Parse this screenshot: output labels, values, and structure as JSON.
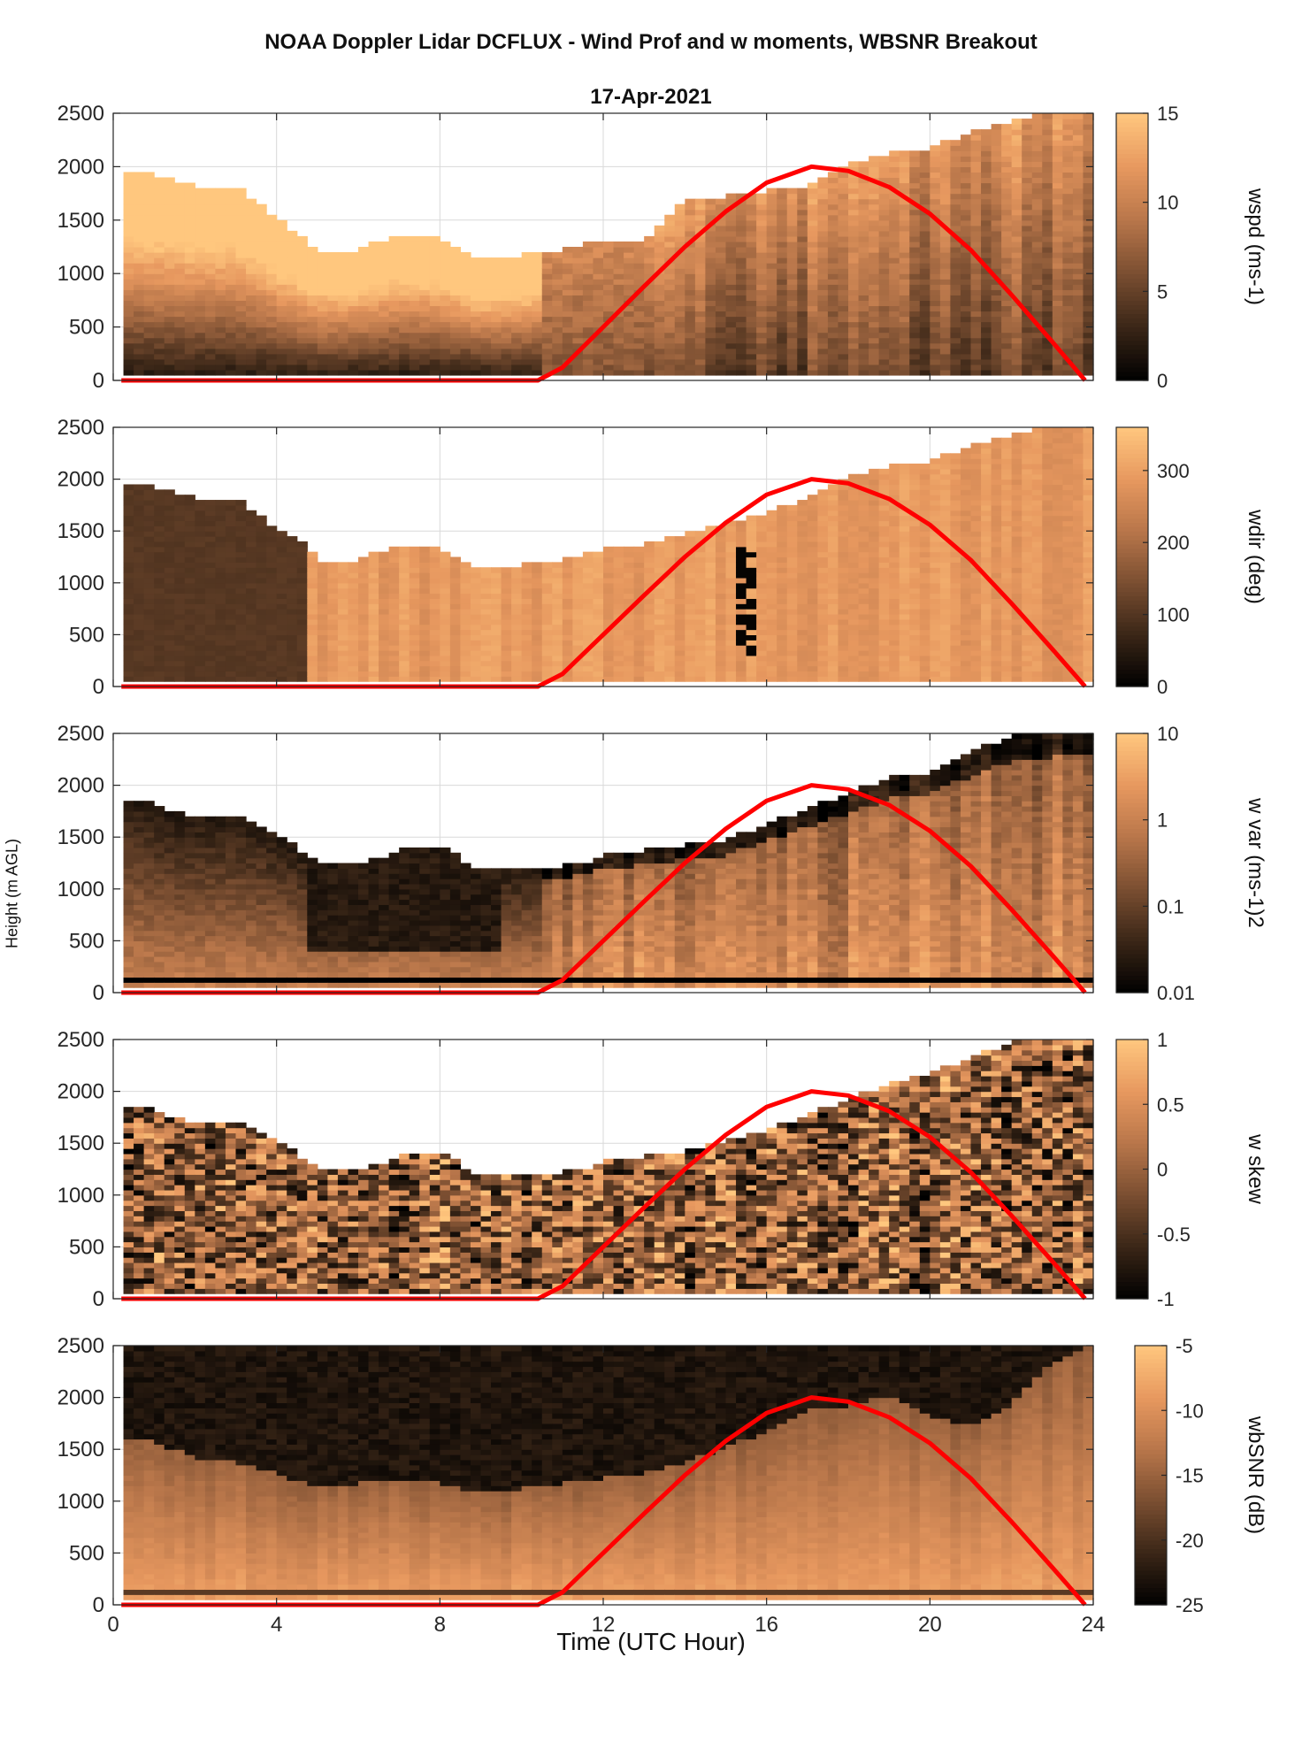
{
  "figure": {
    "title": "NOAA Doppler Lidar DCFLUX - Wind Prof and w moments, WBSNR Breakout",
    "subtitle": "17-Apr-2021",
    "xlabel": "Time (UTC Hour)",
    "ylabel": "Height (m AGL)"
  },
  "colors": {
    "colormap": [
      "#000000",
      "#3a2617",
      "#7a4e31",
      "#b8764a",
      "#e7985f",
      "#ffc77e"
    ],
    "overlay_line": "#ff0000",
    "grid": "#d9d9d9"
  },
  "chart_data": [
    {
      "type": "heatmap",
      "name": "wspd",
      "colorbar_label": "wspd (ms-1)",
      "x_range": [
        0,
        24
      ],
      "y_range": [
        0,
        2500
      ],
      "xticks": [
        0,
        4,
        8,
        12,
        16,
        20,
        24
      ],
      "yticks": [
        0,
        500,
        1000,
        1500,
        2000,
        2500
      ],
      "color_range": [
        0,
        15
      ],
      "color_ticks": [
        0,
        5,
        10,
        15
      ],
      "color_tick_labels": [
        "0",
        "5",
        "10",
        "15"
      ],
      "grid": true,
      "profile_top_m": [
        [
          0.25,
          1950
        ],
        [
          1,
          1900
        ],
        [
          2,
          1800
        ],
        [
          3,
          1800
        ],
        [
          4,
          1500
        ],
        [
          5,
          1200
        ],
        [
          6,
          1200
        ],
        [
          7,
          1350
        ],
        [
          8,
          1300
        ],
        [
          9,
          1100
        ],
        [
          10,
          1150
        ],
        [
          11,
          1200
        ],
        [
          11.5,
          1250
        ],
        [
          12,
          1300
        ],
        [
          13,
          1300
        ],
        [
          14,
          1650
        ],
        [
          15,
          1700
        ],
        [
          16,
          1750
        ],
        [
          17,
          1800
        ],
        [
          18,
          2000
        ],
        [
          19,
          2100
        ],
        [
          20,
          2150
        ],
        [
          21,
          2300
        ],
        [
          22,
          2400
        ],
        [
          23,
          2500
        ],
        [
          23.8,
          2500
        ]
      ]
    },
    {
      "type": "heatmap",
      "name": "wdir",
      "colorbar_label": "wdir (deg)",
      "x_range": [
        0,
        24
      ],
      "y_range": [
        0,
        2500
      ],
      "xticks": [
        0,
        4,
        8,
        12,
        16,
        20,
        24
      ],
      "yticks": [
        0,
        500,
        1000,
        1500,
        2000,
        2500
      ],
      "color_range": [
        0,
        360
      ],
      "color_ticks": [
        0,
        100,
        200,
        300
      ],
      "color_tick_labels": [
        "0",
        "100",
        "200",
        "300"
      ],
      "grid": true,
      "profile_top_m": [
        [
          0.25,
          1950
        ],
        [
          1,
          1900
        ],
        [
          2,
          1800
        ],
        [
          3,
          1800
        ],
        [
          4,
          1500
        ],
        [
          4.7,
          1350
        ],
        [
          5,
          1200
        ],
        [
          6,
          1200
        ],
        [
          7,
          1350
        ],
        [
          8,
          1300
        ],
        [
          9,
          1100
        ],
        [
          10,
          1150
        ],
        [
          11,
          1200
        ],
        [
          12,
          1300
        ],
        [
          13,
          1350
        ],
        [
          14,
          1450
        ],
        [
          15,
          1550
        ],
        [
          16,
          1650
        ],
        [
          17,
          1800
        ],
        [
          18,
          2000
        ],
        [
          19,
          2100
        ],
        [
          20,
          2150
        ],
        [
          21,
          2300
        ],
        [
          22,
          2400
        ],
        [
          23,
          2500
        ],
        [
          23.8,
          2500
        ]
      ]
    },
    {
      "type": "heatmap",
      "name": "w var",
      "colorbar_label": "w var (ms-1)2",
      "x_range": [
        0,
        24
      ],
      "y_range": [
        0,
        2500
      ],
      "xticks": [
        0,
        4,
        8,
        12,
        16,
        20,
        24
      ],
      "yticks": [
        0,
        500,
        1000,
        1500,
        2000,
        2500
      ],
      "color_scale": "log",
      "color_range": [
        0.01,
        10
      ],
      "color_ticks": [
        0.01,
        0.1,
        1,
        10
      ],
      "color_tick_labels": [
        "0.01",
        "0.1",
        "1",
        "10"
      ],
      "grid": true,
      "profile_top_m": [
        [
          0.25,
          1850
        ],
        [
          1,
          1800
        ],
        [
          2,
          1650
        ],
        [
          3,
          1700
        ],
        [
          4,
          1500
        ],
        [
          5,
          1250
        ],
        [
          6,
          1200
        ],
        [
          7,
          1350
        ],
        [
          8,
          1400
        ],
        [
          9,
          1150
        ],
        [
          10,
          1200
        ],
        [
          11,
          1200
        ],
        [
          11.7,
          1250
        ],
        [
          12,
          1300
        ],
        [
          13,
          1350
        ],
        [
          14,
          1400
        ],
        [
          15,
          1450
        ],
        [
          16,
          1600
        ],
        [
          17,
          1750
        ],
        [
          18,
          1900
        ],
        [
          19,
          2050
        ],
        [
          20,
          2100
        ],
        [
          21,
          2300
        ],
        [
          22,
          2450
        ],
        [
          23,
          2500
        ],
        [
          23.8,
          2500
        ]
      ]
    },
    {
      "type": "heatmap",
      "name": "w skew",
      "colorbar_label": "w skew",
      "x_range": [
        0,
        24
      ],
      "y_range": [
        0,
        2500
      ],
      "xticks": [
        0,
        4,
        8,
        12,
        16,
        20,
        24
      ],
      "yticks": [
        0,
        500,
        1000,
        1500,
        2000,
        2500
      ],
      "color_range": [
        -1,
        1
      ],
      "color_ticks": [
        -1,
        -0.5,
        0,
        0.5,
        1
      ],
      "color_tick_labels": [
        "-1",
        "-0.5",
        "0",
        "0.5",
        "1"
      ],
      "grid": true,
      "profile_top_m": [
        [
          0.25,
          1850
        ],
        [
          1,
          1800
        ],
        [
          2,
          1650
        ],
        [
          3,
          1700
        ],
        [
          4,
          1500
        ],
        [
          5,
          1250
        ],
        [
          6,
          1200
        ],
        [
          7,
          1350
        ],
        [
          8,
          1400
        ],
        [
          9,
          1150
        ],
        [
          10,
          1200
        ],
        [
          11,
          1200
        ],
        [
          11.7,
          1250
        ],
        [
          12,
          1300
        ],
        [
          13,
          1350
        ],
        [
          14,
          1400
        ],
        [
          15,
          1500
        ],
        [
          16,
          1600
        ],
        [
          17,
          1750
        ],
        [
          18,
          1900
        ],
        [
          19,
          2050
        ],
        [
          20,
          2150
        ],
        [
          21,
          2300
        ],
        [
          22,
          2450
        ],
        [
          23,
          2500
        ],
        [
          23.8,
          2500
        ]
      ]
    },
    {
      "type": "heatmap",
      "name": "wbSNR",
      "colorbar_label": "wbSNR (dB)",
      "x_range": [
        0,
        24
      ],
      "y_range": [
        0,
        2500
      ],
      "xticks": [
        0,
        4,
        8,
        12,
        16,
        20,
        24
      ],
      "yticks": [
        0,
        500,
        1000,
        1500,
        2000,
        2500
      ],
      "color_range": [
        -25,
        -5
      ],
      "color_ticks": [
        -25,
        -20,
        -15,
        -10,
        -5
      ],
      "color_tick_labels": [
        "-25",
        "-20",
        "-15",
        "-10",
        "-5"
      ],
      "grid": true,
      "bright_layer_top_m": [
        [
          0.25,
          1600
        ],
        [
          1,
          1550
        ],
        [
          2,
          1400
        ],
        [
          3,
          1350
        ],
        [
          4,
          1250
        ],
        [
          5,
          1100
        ],
        [
          6,
          1150
        ],
        [
          7,
          1200
        ],
        [
          8,
          1150
        ],
        [
          9,
          1050
        ],
        [
          10,
          1100
        ],
        [
          11,
          1150
        ],
        [
          12,
          1200
        ],
        [
          13,
          1250
        ],
        [
          14,
          1350
        ],
        [
          15,
          1500
        ],
        [
          16,
          1650
        ],
        [
          17,
          1850
        ],
        [
          18,
          1900
        ],
        [
          19,
          2000
        ],
        [
          20,
          1800
        ],
        [
          21,
          1700
        ],
        [
          22,
          1900
        ],
        [
          23,
          2300
        ],
        [
          23.8,
          2450
        ]
      ]
    }
  ],
  "overlay_curve": {
    "name": "sun curve",
    "points": [
      [
        0.2,
        0
      ],
      [
        10.4,
        0
      ],
      [
        11,
        120
      ],
      [
        12,
        500
      ],
      [
        13,
        880
      ],
      [
        14,
        1250
      ],
      [
        15,
        1580
      ],
      [
        16,
        1850
      ],
      [
        17.1,
        2000
      ],
      [
        18,
        1960
      ],
      [
        19,
        1810
      ],
      [
        20,
        1560
      ],
      [
        21,
        1220
      ],
      [
        22,
        800
      ],
      [
        23,
        360
      ],
      [
        23.8,
        0
      ]
    ]
  }
}
